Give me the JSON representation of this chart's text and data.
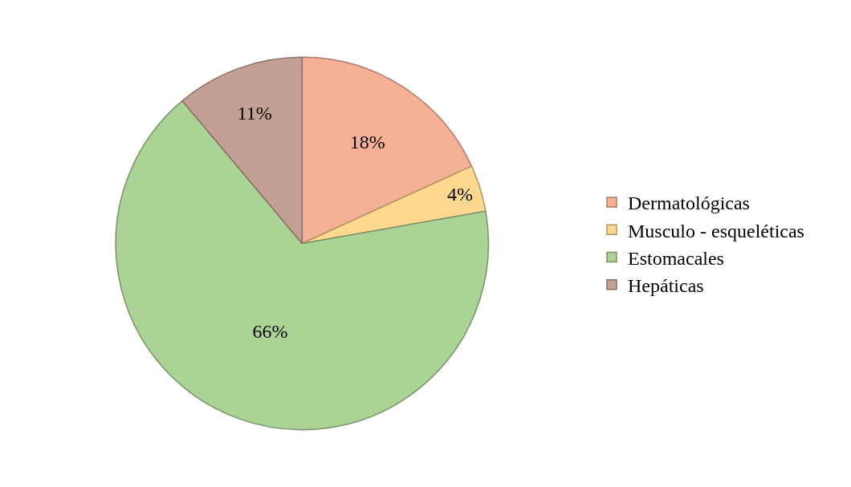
{
  "chart_data": {
    "type": "pie",
    "categories": [
      "Dermatológicas",
      "Musculo - esqueléticas",
      "Estomacales",
      "Hepáticas"
    ],
    "values": [
      18,
      4,
      66,
      11
    ],
    "value_labels": [
      "18%",
      "4%",
      "66%",
      "11%"
    ],
    "colors": [
      "#f5b095",
      "#fed88e",
      "#acd396",
      "#c4a094"
    ],
    "legend": "right"
  }
}
